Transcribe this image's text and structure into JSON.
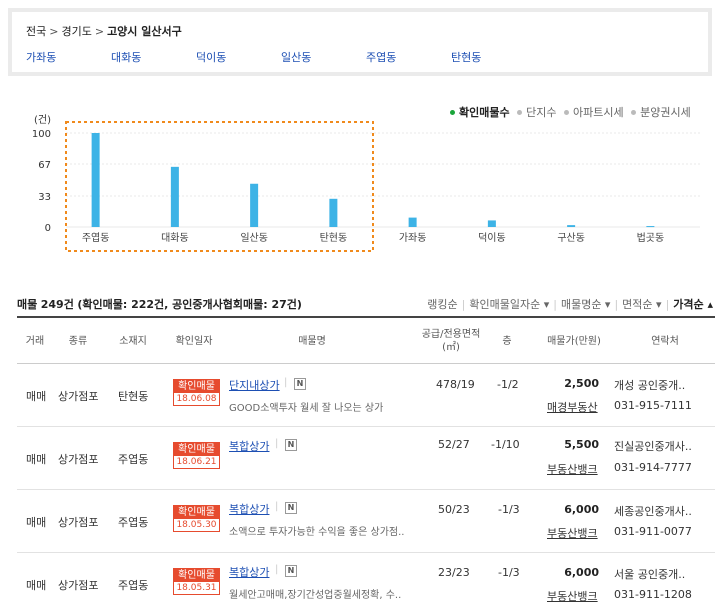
{
  "breadcrumb": {
    "level1": "전국",
    "level2": "경기도",
    "current": "고양시 일산서구",
    "sep": ">"
  },
  "dong_links": [
    "가좌동",
    "대화동",
    "덕이동",
    "일산동",
    "주엽동",
    "탄현동"
  ],
  "legend": {
    "items": [
      {
        "label": "확인매물수",
        "color": "#1aa53a",
        "active": true
      },
      {
        "label": "단지수",
        "color": "#bbbbbb",
        "active": false
      },
      {
        "label": "아파트시세",
        "color": "#bbbbbb",
        "active": false
      },
      {
        "label": "분양권시세",
        "color": "#bbbbbb",
        "active": false
      }
    ]
  },
  "chart_data": {
    "type": "bar",
    "ylabel": "(건)",
    "yticks": [
      0,
      33,
      67,
      100
    ],
    "ylim": [
      0,
      100
    ],
    "categories": [
      "주엽동",
      "대화동",
      "일산동",
      "탄현동",
      "가좌동",
      "덕이동",
      "구산동",
      "법곳동"
    ],
    "values": [
      100,
      64,
      46,
      30,
      10,
      7,
      2,
      1
    ],
    "bar_color": "#3db3e6",
    "highlight": [
      "주엽동",
      "대화동",
      "일산동",
      "탄현동"
    ],
    "highlight_color": "#f08a1c"
  },
  "summary": {
    "label": "매물",
    "count": "249건",
    "detail": "(확인매물: 222건, 공인중개사협회매물: 27건)"
  },
  "sorts": [
    {
      "label": "랭킹순",
      "on": false
    },
    {
      "label": "확인매물일자순 ▾",
      "on": false
    },
    {
      "label": "매물명순 ▾",
      "on": false
    },
    {
      "label": "면적순 ▾",
      "on": false
    },
    {
      "label": "가격순 ▴",
      "on": true
    }
  ],
  "headers": {
    "trade": "거래",
    "type": "종류",
    "location": "소재지",
    "confirm_date": "확인일자",
    "name": "매물명",
    "area": "공급/전용면적\n(㎡)",
    "floor": "층",
    "price": "매물가(만원)",
    "contact": "연락처"
  },
  "badge_label": "확인매물",
  "n_icon": "N",
  "listings": [
    {
      "trade": "매매",
      "type": "상가점포",
      "location": "탄현동",
      "date": "18.06.08",
      "name": "단지내상가",
      "desc": "GOOD소액투자 월세 잘 나오는 상가",
      "area": "478/19",
      "floor": "-1/2",
      "price": "2,500",
      "office": "개성 공인중개..",
      "realtor": "매경부동산",
      "phone": "031-915-7111"
    },
    {
      "trade": "매매",
      "type": "상가점포",
      "location": "주엽동",
      "date": "18.06.21",
      "name": "복합상가",
      "desc": "",
      "area": "52/27",
      "floor": "-1/10",
      "price": "5,500",
      "office": "진실공인중개사..",
      "realtor": "부동산뱅크",
      "phone": "031-914-7777"
    },
    {
      "trade": "매매",
      "type": "상가점포",
      "location": "주엽동",
      "date": "18.05.30",
      "name": "복합상가",
      "desc": "소액으로 투자가능한 수익을 좋은 상가점..",
      "area": "50/23",
      "floor": "-1/3",
      "price": "6,000",
      "office": "세종공인중개사..",
      "realtor": "부동산뱅크",
      "phone": "031-911-0077"
    },
    {
      "trade": "매매",
      "type": "상가점포",
      "location": "주엽동",
      "date": "18.05.31",
      "name": "복합상가",
      "desc": "월세안고매매,장기간성업중월세정확, 수..",
      "area": "23/23",
      "floor": "-1/3",
      "price": "6,000",
      "office": "서울 공인중개..",
      "realtor": "부동산뱅크",
      "phone": "031-911-1208"
    }
  ]
}
